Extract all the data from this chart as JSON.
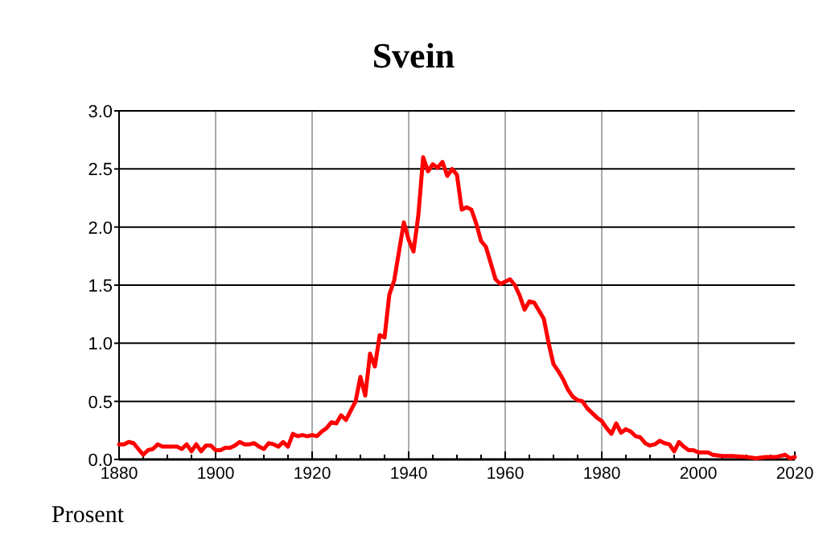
{
  "chart_data": {
    "type": "line",
    "title": "Svein",
    "ylabel": "Prosent",
    "x": [
      1880,
      1881,
      1882,
      1883,
      1884,
      1885,
      1886,
      1887,
      1888,
      1889,
      1890,
      1891,
      1892,
      1893,
      1894,
      1895,
      1896,
      1897,
      1898,
      1899,
      1900,
      1901,
      1902,
      1903,
      1904,
      1905,
      1906,
      1907,
      1908,
      1909,
      1910,
      1911,
      1912,
      1913,
      1914,
      1915,
      1916,
      1917,
      1918,
      1919,
      1920,
      1921,
      1922,
      1923,
      1924,
      1925,
      1926,
      1927,
      1928,
      1929,
      1930,
      1931,
      1932,
      1933,
      1934,
      1935,
      1936,
      1937,
      1938,
      1939,
      1940,
      1941,
      1942,
      1943,
      1944,
      1945,
      1946,
      1947,
      1948,
      1949,
      1950,
      1951,
      1952,
      1953,
      1954,
      1955,
      1956,
      1957,
      1958,
      1959,
      1960,
      1961,
      1962,
      1963,
      1964,
      1965,
      1966,
      1967,
      1968,
      1969,
      1970,
      1971,
      1972,
      1973,
      1974,
      1975,
      1976,
      1977,
      1978,
      1979,
      1980,
      1981,
      1982,
      1983,
      1984,
      1985,
      1986,
      1987,
      1988,
      1989,
      1990,
      1991,
      1992,
      1993,
      1994,
      1995,
      1996,
      1997,
      1998,
      1999,
      2000,
      2001,
      2002,
      2003,
      2005,
      2007,
      2010,
      2012,
      2014,
      2016,
      2018,
      2019,
      2020
    ],
    "series": [
      {
        "color": "#ff0000",
        "values": [
          0.13,
          0.13,
          0.15,
          0.14,
          0.09,
          0.04,
          0.08,
          0.09,
          0.13,
          0.11,
          0.11,
          0.11,
          0.11,
          0.09,
          0.13,
          0.07,
          0.13,
          0.07,
          0.12,
          0.12,
          0.08,
          0.08,
          0.1,
          0.1,
          0.12,
          0.15,
          0.13,
          0.13,
          0.14,
          0.11,
          0.09,
          0.14,
          0.13,
          0.11,
          0.15,
          0.11,
          0.22,
          0.2,
          0.21,
          0.2,
          0.21,
          0.2,
          0.24,
          0.27,
          0.32,
          0.31,
          0.38,
          0.34,
          0.42,
          0.5,
          0.71,
          0.55,
          0.91,
          0.8,
          1.07,
          1.05,
          1.42,
          1.54,
          1.79,
          2.04,
          1.89,
          1.79,
          2.1,
          2.6,
          2.48,
          2.54,
          2.51,
          2.56,
          2.44,
          2.5,
          2.45,
          2.15,
          2.17,
          2.15,
          2.03,
          1.88,
          1.83,
          1.69,
          1.55,
          1.51,
          1.53,
          1.55,
          1.5,
          1.41,
          1.29,
          1.36,
          1.35,
          1.28,
          1.21,
          1.0,
          0.82,
          0.76,
          0.69,
          0.6,
          0.54,
          0.51,
          0.5,
          0.44,
          0.4,
          0.36,
          0.33,
          0.27,
          0.22,
          0.31,
          0.23,
          0.26,
          0.24,
          0.2,
          0.19,
          0.14,
          0.12,
          0.13,
          0.16,
          0.14,
          0.13,
          0.07,
          0.15,
          0.11,
          0.08,
          0.08,
          0.06,
          0.06,
          0.06,
          0.04,
          0.03,
          0.03,
          0.02,
          0.01,
          0.02,
          0.02,
          0.04,
          0.01,
          0.02
        ]
      }
    ],
    "xlim": [
      1880,
      2020
    ],
    "xticks": [
      1880,
      {
        "value": 1885,
        "label": null
      },
      {
        "value": 1890,
        "label": null
      },
      {
        "value": 1895,
        "label": null
      },
      1900,
      {
        "value": 1905,
        "label": null
      },
      {
        "value": 1910,
        "label": null
      },
      {
        "value": 1915,
        "label": null
      },
      1920,
      {
        "value": 1925,
        "label": null
      },
      {
        "value": 1930,
        "label": null
      },
      {
        "value": 1935,
        "label": null
      },
      1940,
      {
        "value": 1945,
        "label": null
      },
      {
        "value": 1950,
        "label": null
      },
      {
        "value": 1955,
        "label": null
      },
      1960,
      {
        "value": 1965,
        "label": null
      },
      {
        "value": 1970,
        "label": null
      },
      {
        "value": 1975,
        "label": null
      },
      1980,
      {
        "value": 1985,
        "label": null
      },
      {
        "value": 1990,
        "label": null
      },
      {
        "value": 1995,
        "label": null
      },
      2000,
      {
        "value": 2005,
        "label": null
      },
      {
        "value": 2010,
        "label": null
      },
      {
        "value": 2015,
        "label": null
      },
      2020
    ],
    "ylim": [
      0,
      3
    ],
    "yticks": [
      {
        "value": 0,
        "label": "0.0"
      },
      {
        "value": 0.5,
        "label": "0.5"
      },
      {
        "value": 1,
        "label": "1.0"
      },
      {
        "value": 1.5,
        "label": "1.5"
      },
      {
        "value": 2,
        "label": "2.0"
      },
      {
        "value": 2.5,
        "label": "2.5"
      },
      {
        "value": 3,
        "label": "3.0"
      }
    ],
    "grid": true,
    "marker": "none",
    "line_style": "solid"
  }
}
